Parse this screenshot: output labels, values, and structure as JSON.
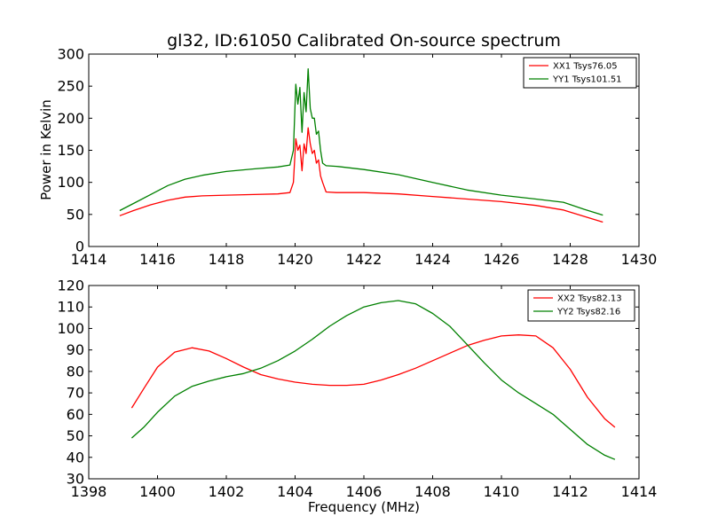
{
  "chart_data": [
    {
      "type": "line",
      "title": "gl32, ID:61050 Calibrated On-source spectrum",
      "xlabel": "",
      "ylabel": "Power in Kelvin",
      "xlim": [
        1414,
        1430
      ],
      "ylim": [
        0,
        300
      ],
      "xticks": [
        "1414",
        "1416",
        "1418",
        "1420",
        "1422",
        "1424",
        "1426",
        "1428",
        "1430"
      ],
      "yticks": [
        "0",
        "50",
        "100",
        "150",
        "200",
        "250",
        "300"
      ],
      "grid": false,
      "legend_position": "top-right",
      "series": [
        {
          "name": "XX1 Tsys76.05",
          "color": "#ff0000",
          "x": [
            1414.9,
            1415.3,
            1415.8,
            1416.3,
            1416.8,
            1417.3,
            1418.0,
            1418.8,
            1419.5,
            1419.85,
            1419.95,
            1420.02,
            1420.08,
            1420.14,
            1420.2,
            1420.26,
            1420.32,
            1420.38,
            1420.44,
            1420.5,
            1420.56,
            1420.62,
            1420.68,
            1420.74,
            1420.8,
            1420.9,
            1421.2,
            1422.0,
            1423.0,
            1424.0,
            1425.0,
            1426.0,
            1427.0,
            1427.8,
            1428.4,
            1428.95
          ],
          "y": [
            48,
            56,
            65,
            72,
            77,
            79,
            80,
            81,
            82,
            84,
            100,
            168,
            150,
            158,
            118,
            160,
            145,
            185,
            160,
            145,
            150,
            130,
            135,
            110,
            100,
            85,
            84,
            84,
            82,
            78,
            74,
            70,
            64,
            57,
            47,
            38
          ]
        },
        {
          "name": "YY1 Tsys101.51",
          "color": "#008000",
          "x": [
            1414.9,
            1415.3,
            1415.8,
            1416.3,
            1416.8,
            1417.3,
            1418.0,
            1418.8,
            1419.5,
            1419.85,
            1419.95,
            1420.02,
            1420.08,
            1420.14,
            1420.2,
            1420.26,
            1420.32,
            1420.38,
            1420.44,
            1420.5,
            1420.56,
            1420.62,
            1420.68,
            1420.74,
            1420.8,
            1420.9,
            1421.2,
            1422.0,
            1423.0,
            1424.0,
            1425.0,
            1426.0,
            1427.0,
            1427.8,
            1428.4,
            1428.95
          ],
          "y": [
            56,
            67,
            81,
            95,
            105,
            111,
            117,
            121,
            124,
            127,
            150,
            253,
            222,
            248,
            178,
            240,
            210,
            277,
            215,
            200,
            200,
            175,
            180,
            150,
            130,
            126,
            125,
            120,
            112,
            100,
            88,
            80,
            74,
            69,
            58,
            49
          ]
        }
      ]
    },
    {
      "type": "line",
      "title": "",
      "xlabel": "Frequency (MHz)",
      "ylabel": "",
      "xlim": [
        1398,
        1414
      ],
      "ylim": [
        30,
        120
      ],
      "xticks": [
        "1398",
        "1400",
        "1402",
        "1404",
        "1406",
        "1408",
        "1410",
        "1412",
        "1414"
      ],
      "yticks": [
        "30",
        "40",
        "50",
        "60",
        "70",
        "80",
        "90",
        "100",
        "110",
        "120"
      ],
      "grid": false,
      "legend_position": "top-right",
      "series": [
        {
          "name": "XX2 Tsys82.13",
          "color": "#ff0000",
          "x": [
            1399.25,
            1399.6,
            1400.0,
            1400.5,
            1401.0,
            1401.5,
            1402.0,
            1402.5,
            1403.0,
            1403.5,
            1404.0,
            1404.5,
            1405.0,
            1405.5,
            1406.0,
            1406.5,
            1407.0,
            1407.5,
            1408.0,
            1408.5,
            1409.0,
            1409.5,
            1410.0,
            1410.5,
            1411.0,
            1411.5,
            1412.0,
            1412.5,
            1413.0,
            1413.3
          ],
          "y": [
            63,
            72,
            82,
            89,
            91,
            89.5,
            86,
            82,
            78.5,
            76.5,
            75,
            74,
            73.5,
            73.5,
            74,
            76,
            78.5,
            81.5,
            85,
            88.5,
            92,
            94.5,
            96.5,
            97,
            96.5,
            91,
            81,
            68,
            58,
            54
          ]
        },
        {
          "name": "YY2 Tsys82.16",
          "color": "#008000",
          "x": [
            1399.25,
            1399.6,
            1400.0,
            1400.5,
            1401.0,
            1401.5,
            1402.0,
            1402.5,
            1403.0,
            1403.5,
            1404.0,
            1404.5,
            1405.0,
            1405.5,
            1406.0,
            1406.5,
            1407.0,
            1407.5,
            1408.0,
            1408.5,
            1409.0,
            1409.5,
            1410.0,
            1410.5,
            1411.0,
            1411.5,
            1412.0,
            1412.5,
            1413.0,
            1413.3
          ],
          "y": [
            49,
            54,
            61,
            68.5,
            73,
            75.5,
            77.5,
            79,
            81.5,
            85,
            89.5,
            95,
            101,
            106,
            110,
            112,
            113,
            111.5,
            107,
            101,
            92.5,
            84,
            76,
            70,
            65,
            60,
            53,
            46,
            41,
            39
          ]
        }
      ]
    }
  ]
}
